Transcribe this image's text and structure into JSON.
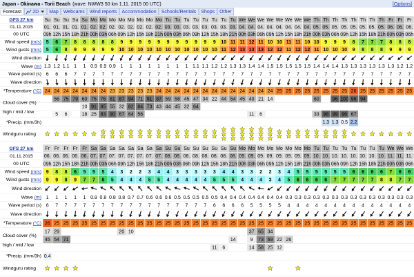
{
  "header": {
    "location": "Japan - Okinawa - Torii Beach",
    "model_info": "(wave: NWW3 50 km 1.11. 2015 00 UTC)",
    "options": "[Options]"
  },
  "tabs": [
    "Forecast",
    "2D",
    "Map",
    "Webcams",
    "Wind reports",
    "Accommodation",
    "Schools/Rentals",
    "Shops",
    "Other"
  ],
  "labels": {
    "model": "GFS 27 km",
    "init_date": "01.11.2015",
    "init_time": "00 UTC",
    "wind_speed": "Wind speed",
    "wind_gusts": "Wind gusts",
    "unit_ms": "(m/s)",
    "wind_direction": "Wind direction",
    "wave": "Wave",
    "unit_m": "(m)",
    "wave_period": "Wave period (s)",
    "wave_direction": "Wave direction",
    "temperature": "*Temperature",
    "unit_c": "(°C)",
    "cloud_cover": "Cloud cover (%)",
    "cloud_levels": "high / mid / low",
    "precip": "*Precip. (mm/3h)",
    "rating": "Windguru rating"
  },
  "tables": [
    {
      "days": [
        "Su",
        "Su",
        "Su",
        "Su",
        "Su",
        "Mo",
        "Mo",
        "Mo",
        "Mo",
        "Mo",
        "Mo",
        "Mo",
        "Mo",
        "Tu",
        "Tu",
        "Tu",
        "Tu",
        "Tu",
        "Tu",
        "Tu",
        "Tu",
        "We",
        "We",
        "We",
        "We",
        "We",
        "We",
        "We",
        "We",
        "Th",
        "Th",
        "Th",
        "Th",
        "Th",
        "Th",
        "Th",
        "Th",
        "Fr",
        "Fr",
        "Fr"
      ],
      "dates": [
        "01.",
        "01.",
        "01.",
        "01.",
        "01.",
        "02.",
        "02.",
        "02.",
        "02.",
        "02.",
        "02.",
        "02.",
        "02.",
        "03.",
        "03.",
        "03.",
        "03.",
        "03.",
        "03.",
        "03.",
        "03.",
        "04.",
        "04.",
        "04.",
        "04.",
        "04.",
        "04.",
        "04.",
        "04.",
        "05.",
        "05.",
        "05.",
        "05.",
        "05.",
        "05.",
        "05.",
        "05.",
        "06.",
        "06.",
        "06."
      ],
      "hours": [
        "09h",
        "12h",
        "15h",
        "18h",
        "21h",
        "00h",
        "03h",
        "06h",
        "09h",
        "12h",
        "15h",
        "18h",
        "21h",
        "00h",
        "03h",
        "06h",
        "09h",
        "12h",
        "15h",
        "18h",
        "21h",
        "00h",
        "03h",
        "06h",
        "09h",
        "12h",
        "15h",
        "18h",
        "21h",
        "00h",
        "03h",
        "06h",
        "09h",
        "12h",
        "15h",
        "18h",
        "21h",
        "00h",
        "03h",
        "06h"
      ],
      "wind_speed": [
        5,
        6,
        7,
        8,
        8,
        8,
        8,
        8,
        9,
        9,
        9,
        9,
        9,
        9,
        9,
        9,
        9,
        9,
        9,
        10,
        11,
        11,
        12,
        11,
        10,
        10,
        11,
        11,
        10,
        10,
        9,
        9,
        9,
        8,
        7,
        7,
        7,
        8,
        8,
        8
      ],
      "wind_gusts": [
        5,
        6,
        8,
        9,
        9,
        9,
        9,
        9,
        10,
        10,
        10,
        10,
        10,
        10,
        10,
        10,
        10,
        10,
        10,
        11,
        12,
        13,
        13,
        13,
        12,
        12,
        11,
        12,
        12,
        11,
        10,
        10,
        10,
        9,
        8,
        8,
        8,
        9,
        9,
        9
      ],
      "wind_dir": [
        190,
        190,
        195,
        200,
        200,
        200,
        205,
        205,
        205,
        210,
        210,
        210,
        210,
        215,
        215,
        215,
        215,
        220,
        220,
        220,
        220,
        220,
        215,
        215,
        215,
        210,
        210,
        210,
        210,
        215,
        215,
        220,
        220,
        225,
        225,
        225,
        225,
        230,
        230,
        230
      ],
      "wave": [
        "1.3",
        "1.2",
        "1.1",
        "1",
        "1",
        "0.9",
        "0.9",
        "0.9",
        "1",
        "1",
        "1",
        "1",
        "1",
        "1",
        "1",
        "1",
        "1.1",
        "1.1",
        "1.2",
        "1.2",
        "1.3",
        "1.3",
        "1.4",
        "1.4",
        "1.5",
        "1.5",
        "1.5",
        "1.5",
        "1.5",
        "1.4",
        "1.4",
        "1.4",
        "1.3",
        "1.3",
        "1.3",
        "1.3",
        "1.3",
        "1.3",
        "1.2",
        "1.2"
      ],
      "wave_period": [
        6,
        6,
        6,
        7,
        7,
        7,
        7,
        7,
        7,
        7,
        7,
        7,
        7,
        7,
        7,
        7,
        7,
        7,
        7,
        7,
        7,
        7,
        7,
        7,
        7,
        7,
        7,
        7,
        7,
        7,
        7,
        7,
        7,
        7,
        7,
        7,
        7,
        7,
        7,
        7
      ],
      "wave_dir": [
        170,
        170,
        175,
        175,
        180,
        180,
        180,
        180,
        180,
        185,
        185,
        185,
        185,
        190,
        190,
        190,
        190,
        195,
        195,
        195,
        195,
        195,
        195,
        195,
        195,
        195,
        195,
        190,
        190,
        190,
        190,
        190,
        190,
        190,
        185,
        185,
        185,
        185,
        185,
        185
      ],
      "temperature": [
        24,
        24,
        24,
        24,
        24,
        24,
        24,
        23,
        23,
        23,
        23,
        23,
        24,
        24,
        24,
        24,
        24,
        24,
        24,
        24,
        24,
        24,
        24,
        24,
        24,
        25,
        25,
        25,
        25,
        25,
        25,
        25,
        25,
        26,
        25,
        25,
        25,
        25,
        25,
        25
      ],
      "cloud_high": [
        null,
        56,
        75,
        79,
        60,
        75,
        76,
        81,
        87,
        94,
        71,
        91,
        87,
        59,
        58,
        45,
        47,
        34,
        22,
        44,
        54,
        45,
        40,
        21,
        14,
        null,
        null,
        null,
        null,
        60,
        null,
        96,
        100,
        96,
        94,
        null,
        null,
        null,
        null,
        null
      ],
      "cloud_mid": [
        null,
        null,
        null,
        null,
        10,
        91,
        85,
        55,
        32,
        82,
        84,
        73,
        43,
        44,
        45,
        32,
        64,
        null,
        null,
        null,
        null,
        null,
        null,
        null,
        null,
        null,
        null,
        null,
        null,
        null,
        null,
        null,
        null,
        null,
        null,
        null,
        null,
        null,
        null,
        null
      ],
      "cloud_low": [
        null,
        5,
        6,
        null,
        18,
        25,
        83,
        90,
        67,
        64,
        56,
        null,
        null,
        null,
        null,
        null,
        null,
        null,
        null,
        null,
        null,
        null,
        11,
        6,
        null,
        null,
        null,
        null,
        null,
        33,
        98,
        99,
        96,
        67,
        null,
        null,
        null,
        null,
        null,
        null
      ],
      "precip": [
        null,
        null,
        null,
        null,
        null,
        null,
        null,
        null,
        null,
        null,
        null,
        null,
        null,
        null,
        null,
        null,
        null,
        null,
        null,
        null,
        null,
        null,
        null,
        null,
        null,
        null,
        null,
        null,
        null,
        null,
        1.3,
        1.3,
        0.5,
        2.2,
        null,
        null,
        null,
        null,
        null,
        null
      ],
      "rating": [
        1,
        1,
        1,
        1,
        1,
        1,
        2,
        2,
        2,
        2,
        2,
        2,
        2,
        2,
        2,
        2,
        2,
        2,
        2,
        3,
        3,
        3,
        3,
        3,
        3,
        2,
        2,
        2,
        2,
        2,
        2,
        2,
        2,
        1,
        1,
        1,
        1,
        1,
        1,
        1
      ]
    },
    {
      "days": [
        "Fr",
        "Fr",
        "Fr",
        "Fr",
        "Fr",
        "Sa",
        "Sa",
        "Sa",
        "Sa",
        "Sa",
        "Sa",
        "Sa",
        "Sa",
        "Su",
        "Su",
        "Su",
        "Su",
        "Su",
        "Su",
        "Su",
        "Su",
        "Mo",
        "Mo",
        "Mo",
        "Mo",
        "Mo",
        "Mo",
        "Mo",
        "Mo",
        "Tu",
        "Tu",
        "Tu",
        "Tu",
        "Tu",
        "Tu",
        "Tu",
        "Tu",
        "We",
        "We",
        "We"
      ],
      "dates": [
        "06.",
        "06.",
        "06.",
        "06.",
        "06.",
        "07.",
        "07.",
        "07.",
        "07.",
        "07.",
        "07.",
        "07.",
        "07.",
        "08.",
        "08.",
        "08.",
        "08.",
        "08.",
        "08.",
        "08.",
        "08.",
        "09.",
        "09.",
        "09.",
        "09.",
        "09.",
        "09.",
        "09.",
        "09.",
        "10.",
        "10.",
        "10.",
        "10.",
        "10.",
        "10.",
        "10.",
        "10.",
        "11.",
        "11.",
        "11."
      ],
      "hours": [
        "09h",
        "12h",
        "15h",
        "18h",
        "21h",
        "00h",
        "03h",
        "06h",
        "09h",
        "12h",
        "15h",
        "18h",
        "21h",
        "00h",
        "03h",
        "06h",
        "09h",
        "12h",
        "15h",
        "18h",
        "21h",
        "00h",
        "03h",
        "06h",
        "09h",
        "12h",
        "15h",
        "18h",
        "21h",
        "00h",
        "03h",
        "06h",
        "09h",
        "12h",
        "15h",
        "18h",
        "21h",
        "00h",
        "03h",
        "06h"
      ],
      "wind_speed": [
        9,
        8,
        8,
        6,
        5,
        5,
        5,
        4,
        3,
        2,
        2,
        3,
        4,
        4,
        3,
        3,
        3,
        3,
        3,
        4,
        4,
        3,
        3,
        2,
        2,
        3,
        4,
        5,
        5,
        5,
        5,
        5,
        5,
        6,
        6,
        6,
        6,
        7,
        6,
        6
      ],
      "wind_gusts": [
        9,
        9,
        8,
        9,
        7,
        7,
        6,
        5,
        4,
        4,
        4,
        5,
        5,
        4,
        4,
        4,
        4,
        4,
        5,
        5,
        5,
        4,
        4,
        4,
        3,
        4,
        5,
        6,
        6,
        6,
        6,
        7,
        7,
        7,
        7,
        7,
        8,
        8,
        7,
        7
      ],
      "wind_dir": [
        225,
        225,
        230,
        240,
        260,
        290,
        300,
        310,
        315,
        315,
        320,
        315,
        310,
        300,
        290,
        290,
        300,
        310,
        315,
        320,
        320,
        315,
        300,
        280,
        240,
        225,
        220,
        215,
        215,
        210,
        210,
        210,
        215,
        215,
        220,
        220,
        225,
        225,
        225,
        225
      ],
      "wave": [
        "1",
        "1",
        "1",
        "1",
        "1",
        "0.9",
        "0.8",
        "0.8",
        "0.8",
        "0.7",
        "0.7",
        "0.6",
        "0.6",
        "0.6",
        "0.5",
        "0.5",
        "0.5",
        "0.5",
        "0.5",
        "0.4",
        "0.4",
        "0.4",
        "0.4",
        "0.4",
        "0.4",
        "0.4",
        "0.3",
        "0.3",
        "0.3",
        "0.3",
        "0.3",
        "0.3",
        "0.3",
        "0.3",
        "0.3",
        "0.3",
        "0.3",
        "0.3",
        "0.3",
        "0.3"
      ],
      "wave_period": [
        6,
        7,
        7,
        7,
        7,
        7,
        7,
        7,
        7,
        7,
        7,
        7,
        7,
        7,
        7,
        7,
        7,
        7,
        6,
        6,
        6,
        6,
        5,
        5,
        5,
        5,
        4,
        4,
        4,
        4,
        4,
        4,
        4,
        4,
        4,
        4,
        4,
        4,
        4,
        4
      ],
      "wave_dir": [
        185,
        185,
        185,
        185,
        190,
        190,
        190,
        190,
        190,
        195,
        195,
        195,
        195,
        200,
        200,
        200,
        200,
        200,
        205,
        205,
        205,
        205,
        210,
        210,
        210,
        210,
        210,
        215,
        215,
        215,
        215,
        215,
        215,
        215,
        215,
        215,
        215,
        215,
        215,
        215
      ],
      "temperature": [
        26,
        25,
        25,
        25,
        25,
        25,
        25,
        25,
        25,
        25,
        25,
        25,
        25,
        25,
        25,
        25,
        25,
        25,
        25,
        25,
        25,
        25,
        25,
        25,
        25,
        25,
        25,
        25,
        25,
        25,
        25,
        25,
        25,
        25,
        25,
        25,
        25,
        25,
        25,
        25
      ],
      "cloud_high": [
        17,
        29,
        null,
        null,
        null,
        null,
        null,
        null,
        20,
        10,
        null,
        null,
        null,
        null,
        null,
        null,
        null,
        null,
        null,
        null,
        null,
        null,
        37,
        65,
        34,
        null,
        null,
        null,
        null,
        null,
        null,
        null,
        null,
        null,
        null,
        null,
        null,
        null,
        null,
        null
      ],
      "cloud_mid": [
        45,
        54,
        71,
        null,
        null,
        null,
        null,
        null,
        null,
        null,
        null,
        null,
        null,
        null,
        null,
        null,
        null,
        null,
        null,
        null,
        14,
        null,
        9,
        73,
        69,
        22,
        26,
        null,
        null,
        null,
        null,
        null,
        null,
        null,
        null,
        null,
        null,
        null,
        null,
        null
      ],
      "cloud_low": [
        null,
        null,
        null,
        null,
        null,
        null,
        null,
        null,
        null,
        null,
        null,
        null,
        null,
        null,
        null,
        null,
        null,
        null,
        11,
        6,
        null,
        null,
        14,
        58,
        25,
        12,
        null,
        null,
        null,
        null,
        null,
        null,
        null,
        null,
        null,
        null,
        null,
        null,
        null,
        null
      ],
      "precip": [
        0.4,
        null,
        null,
        null,
        null,
        null,
        null,
        null,
        null,
        null,
        null,
        null,
        null,
        null,
        null,
        null,
        null,
        null,
        null,
        null,
        null,
        null,
        null,
        null,
        null,
        null,
        null,
        null,
        null,
        null,
        null,
        null,
        null,
        null,
        null,
        null,
        null,
        null,
        null,
        null
      ],
      "rating": [
        1,
        1,
        1,
        1,
        null,
        null,
        null,
        null,
        null,
        null,
        null,
        null,
        null,
        null,
        null,
        null,
        null,
        null,
        null,
        null,
        null,
        null,
        null,
        null,
        1,
        null,
        null,
        1,
        null,
        null,
        null,
        null,
        null,
        null,
        null,
        null,
        null,
        null,
        null,
        null
      ]
    }
  ]
}
